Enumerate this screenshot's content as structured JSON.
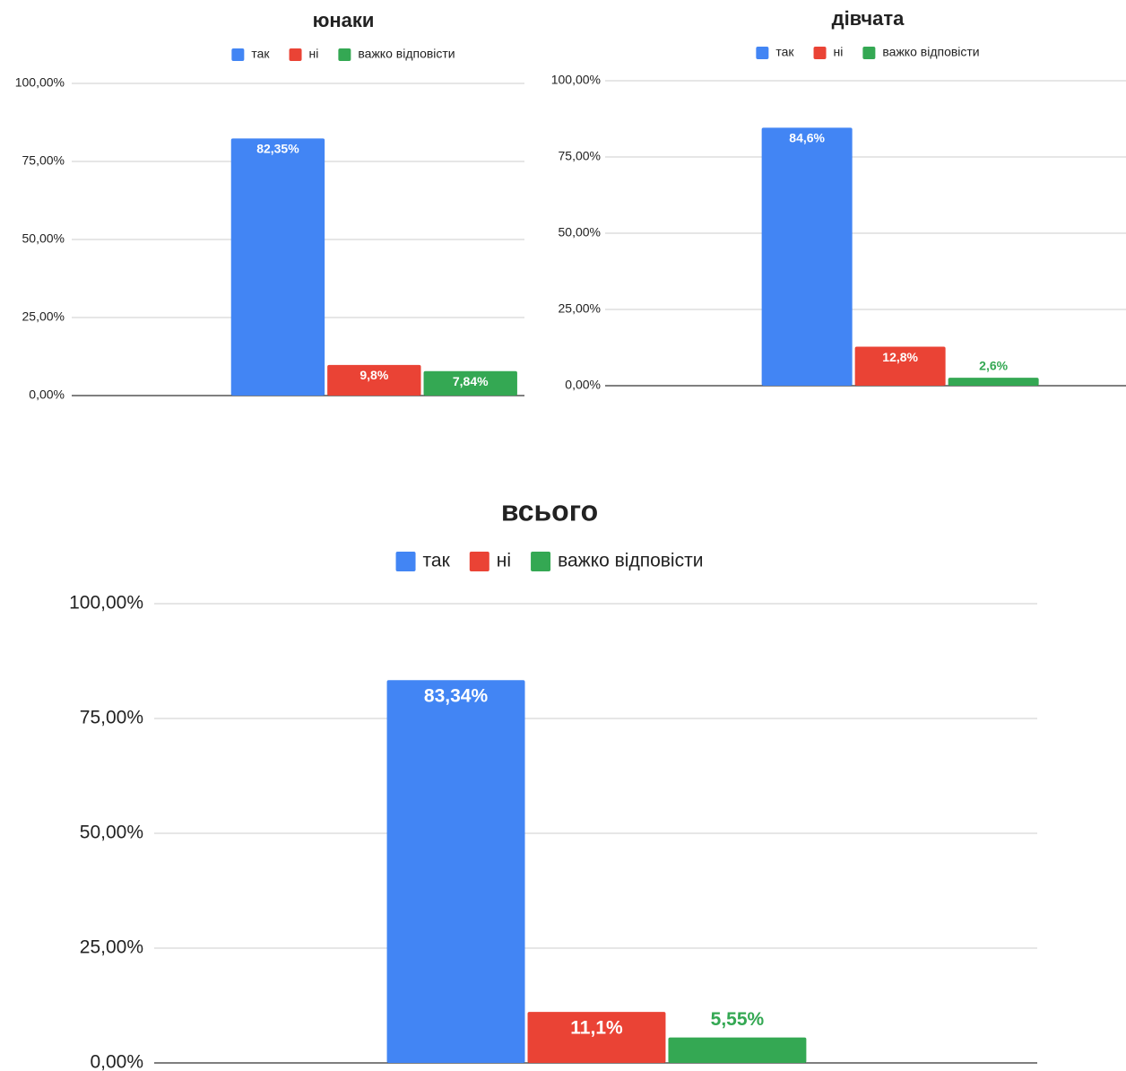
{
  "chart_data": [
    {
      "type": "bar",
      "title": "юнаки",
      "categories": [
        null
      ],
      "series": [
        {
          "name": "так",
          "color": "#4285f4",
          "values": [
            82.35
          ],
          "value_labels": [
            "82,35%"
          ]
        },
        {
          "name": "ні",
          "color": "#ea4335",
          "values": [
            9.8
          ],
          "value_labels": [
            "9,8%"
          ]
        },
        {
          "name": "важко відповісти",
          "color": "#34a853",
          "values": [
            7.84
          ],
          "value_labels": [
            "7,84%"
          ]
        }
      ],
      "ylim": [
        0,
        100
      ],
      "yticks": [
        {
          "value": 0,
          "label": "0,00%"
        },
        {
          "value": 25,
          "label": "25,00%"
        },
        {
          "value": 50,
          "label": "50,00%"
        },
        {
          "value": 75,
          "label": "75,00%"
        },
        {
          "value": 100,
          "label": "100,00%"
        }
      ],
      "grid": true,
      "legend": "top"
    },
    {
      "type": "bar",
      "title": "дівчата",
      "categories": [
        null
      ],
      "series": [
        {
          "name": "так",
          "color": "#4285f4",
          "values": [
            84.6
          ],
          "value_labels": [
            "84,6%"
          ]
        },
        {
          "name": "ні",
          "color": "#ea4335",
          "values": [
            12.8
          ],
          "value_labels": [
            "12,8%"
          ]
        },
        {
          "name": "важко відповісти",
          "color": "#34a853",
          "values": [
            2.6
          ],
          "value_labels": [
            "2,6%"
          ]
        }
      ],
      "ylim": [
        0,
        100
      ],
      "yticks": [
        {
          "value": 0,
          "label": "0,00%"
        },
        {
          "value": 25,
          "label": "25,00%"
        },
        {
          "value": 50,
          "label": "50,00%"
        },
        {
          "value": 75,
          "label": "75,00%"
        },
        {
          "value": 100,
          "label": "100,00%"
        }
      ],
      "grid": true,
      "legend": "top"
    },
    {
      "type": "bar",
      "title": "всього",
      "categories": [
        null
      ],
      "series": [
        {
          "name": "так",
          "color": "#4285f4",
          "values": [
            83.34
          ],
          "value_labels": [
            "83,34%"
          ]
        },
        {
          "name": "ні",
          "color": "#ea4335",
          "values": [
            11.1
          ],
          "value_labels": [
            "11,1%"
          ]
        },
        {
          "name": "важко відповісти",
          "color": "#34a853",
          "values": [
            5.55
          ],
          "value_labels": [
            "5,55%"
          ]
        }
      ],
      "ylim": [
        0,
        100
      ],
      "yticks": [
        {
          "value": 0,
          "label": "0,00%"
        },
        {
          "value": 25,
          "label": "25,00%"
        },
        {
          "value": 50,
          "label": "50,00%"
        },
        {
          "value": 75,
          "label": "75,00%"
        },
        {
          "value": 100,
          "label": "100,00%"
        }
      ],
      "grid": true,
      "legend": "top"
    }
  ]
}
